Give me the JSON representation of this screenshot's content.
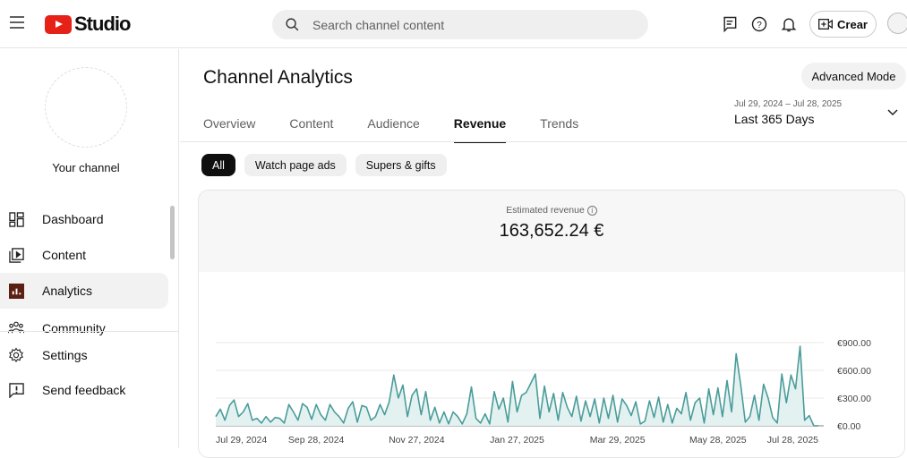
{
  "header": {
    "logo_text": "Studio",
    "search_placeholder": "Search channel content",
    "create_label": "Crear"
  },
  "sidebar": {
    "channel_label": "Your channel",
    "items": [
      {
        "label": "Dashboard",
        "icon": "dashboard-icon"
      },
      {
        "label": "Content",
        "icon": "content-icon"
      },
      {
        "label": "Analytics",
        "icon": "analytics-icon",
        "active": true
      },
      {
        "label": "Community",
        "icon": "community-icon"
      },
      {
        "label": "Settings",
        "icon": "settings-icon"
      },
      {
        "label": "Send feedback",
        "icon": "feedback-icon"
      }
    ]
  },
  "main": {
    "title": "Channel Analytics",
    "advanced_mode": "Advanced Mode",
    "tabs": [
      "Overview",
      "Content",
      "Audience",
      "Revenue",
      "Trends"
    ],
    "active_tab": "Revenue",
    "date_range": {
      "dates": "Jul 29, 2024 – Jul 28, 2025",
      "label": "Last 365 Days"
    },
    "chips": [
      "All",
      "Watch page ads",
      "Supers & gifts"
    ],
    "metric": {
      "label": "Estimated revenue",
      "value": "163,652.24 €"
    }
  },
  "colors": {
    "line": "#4a9c9a",
    "fill": "#e3f2f1",
    "analytics_icon": "#5c1f14"
  },
  "chart_data": {
    "type": "area",
    "title": "Estimated revenue",
    "ylim": [
      0,
      900
    ],
    "yticks": [
      "€0.00",
      "€300.00",
      "€600.00",
      "€900.00"
    ],
    "ytick_values": [
      0,
      300,
      600,
      900
    ],
    "xticks": [
      "Jul 29, 2024",
      "Sep 28, 2024",
      "Nov 27, 2024",
      "Jan 27, 2025",
      "Mar 29, 2025",
      "May 28, 2025",
      "Jul 28, 2025"
    ],
    "x_start": "Jul 29, 2024",
    "x_end": "Jul 28, 2025",
    "values": [
      100,
      180,
      60,
      220,
      280,
      100,
      150,
      240,
      60,
      80,
      30,
      100,
      40,
      90,
      80,
      30,
      230,
      150,
      60,
      240,
      200,
      70,
      230,
      120,
      60,
      230,
      150,
      100,
      30,
      190,
      260,
      40,
      220,
      200,
      60,
      100,
      230,
      120,
      260,
      550,
      300,
      440,
      100,
      330,
      400,
      120,
      370,
      60,
      200,
      30,
      150,
      20,
      150,
      100,
      20,
      130,
      420,
      80,
      30,
      130,
      20,
      370,
      180,
      300,
      40,
      480,
      150,
      330,
      360,
      460,
      560,
      80,
      430,
      150,
      350,
      60,
      360,
      200,
      100,
      320,
      50,
      270,
      100,
      290,
      30,
      300,
      80,
      330,
      40,
      290,
      220,
      110,
      260,
      20,
      50,
      270,
      90,
      310,
      40,
      230,
      30,
      190,
      130,
      360,
      60,
      250,
      300,
      30,
      400,
      120,
      410,
      100,
      490,
      150,
      780,
      440,
      40,
      100,
      330,
      60,
      450,
      300,
      90,
      30,
      560,
      250,
      550,
      400,
      860,
      60,
      110,
      0,
      0
    ]
  }
}
